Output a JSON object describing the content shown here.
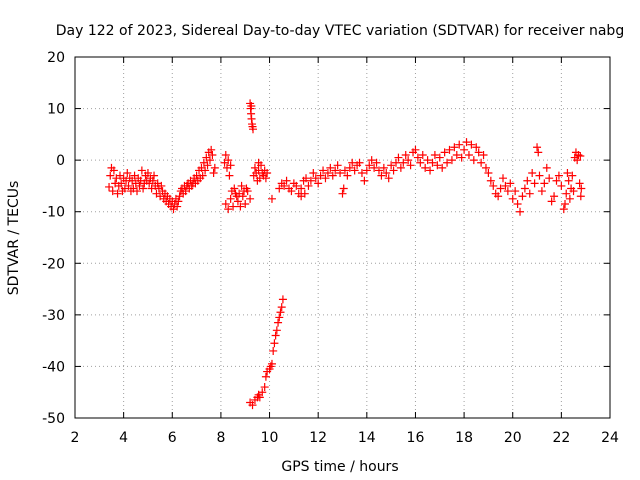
{
  "chart_data": {
    "type": "scatter",
    "title": "Day 122 of 2023, Sidereal Day-to-day VTEC variation (SDTVAR) for receiver nabg",
    "xlabel": "GPS time / hours",
    "ylabel": "SDTVAR / TECUs",
    "xlim": [
      2,
      24
    ],
    "ylim": [
      -50,
      20
    ],
    "x_ticks": [
      2,
      4,
      6,
      8,
      10,
      12,
      14,
      16,
      18,
      20,
      22,
      24
    ],
    "y_ticks": [
      -50,
      -40,
      -30,
      -20,
      -10,
      0,
      10,
      20
    ],
    "x_tick_labels": [
      "2",
      "4",
      "6",
      "8",
      "10",
      "12",
      "14",
      "16",
      "18",
      "20",
      "22",
      "24"
    ],
    "y_tick_labels": [
      "-50",
      "-40",
      "-30",
      "-20",
      "-10",
      "0",
      "10",
      "20"
    ],
    "grid": true,
    "marker": "plus",
    "color": "#ff0000",
    "series": [
      {
        "name": "SDTVAR",
        "points": [
          [
            3.4,
            -5.2
          ],
          [
            3.45,
            -3.0
          ],
          [
            3.5,
            -1.5
          ],
          [
            3.55,
            -6.0
          ],
          [
            3.6,
            -2.0
          ],
          [
            3.65,
            -4.5
          ],
          [
            3.7,
            -3.5
          ],
          [
            3.75,
            -6.5
          ],
          [
            3.8,
            -5.0
          ],
          [
            3.85,
            -3.0
          ],
          [
            3.9,
            -4.5
          ],
          [
            3.95,
            -6.0
          ],
          [
            4.0,
            -3.5
          ],
          [
            4.05,
            -5.5
          ],
          [
            4.1,
            -4.0
          ],
          [
            4.15,
            -2.5
          ],
          [
            4.2,
            -5.0
          ],
          [
            4.25,
            -3.5
          ],
          [
            4.3,
            -6.0
          ],
          [
            4.35,
            -4.0
          ],
          [
            4.4,
            -5.5
          ],
          [
            4.45,
            -3.0
          ],
          [
            4.5,
            -4.5
          ],
          [
            4.55,
            -6.0
          ],
          [
            4.6,
            -3.5
          ],
          [
            4.65,
            -5.0
          ],
          [
            4.7,
            -4.0
          ],
          [
            4.75,
            -2.0
          ],
          [
            4.8,
            -5.5
          ],
          [
            4.85,
            -4.5
          ],
          [
            4.9,
            -3.0
          ],
          [
            4.95,
            -4.0
          ],
          [
            5.0,
            -2.5
          ],
          [
            5.05,
            -4.5
          ],
          [
            5.1,
            -3.5
          ],
          [
            5.15,
            -5.5
          ],
          [
            5.2,
            -4.0
          ],
          [
            5.25,
            -3.0
          ],
          [
            5.3,
            -5.0
          ],
          [
            5.35,
            -6.5
          ],
          [
            5.4,
            -4.5
          ],
          [
            5.45,
            -5.5
          ],
          [
            5.5,
            -7.0
          ],
          [
            5.55,
            -5.0
          ],
          [
            5.6,
            -6.0
          ],
          [
            5.65,
            -7.5
          ],
          [
            5.7,
            -6.5
          ],
          [
            5.75,
            -8.0
          ],
          [
            5.8,
            -7.0
          ],
          [
            5.85,
            -8.5
          ],
          [
            5.9,
            -7.5
          ],
          [
            5.95,
            -9.0
          ],
          [
            6.0,
            -8.0
          ],
          [
            6.05,
            -9.5
          ],
          [
            6.1,
            -8.5
          ],
          [
            6.15,
            -7.5
          ],
          [
            6.2,
            -9.0
          ],
          [
            6.25,
            -8.0
          ],
          [
            6.3,
            -7.0
          ],
          [
            6.35,
            -6.0
          ],
          [
            6.4,
            -5.5
          ],
          [
            6.45,
            -6.5
          ],
          [
            6.5,
            -5.0
          ],
          [
            6.55,
            -6.0
          ],
          [
            6.6,
            -5.0
          ],
          [
            6.65,
            -4.5
          ],
          [
            6.7,
            -5.5
          ],
          [
            6.75,
            -4.0
          ],
          [
            6.8,
            -5.0
          ],
          [
            6.85,
            -4.5
          ],
          [
            6.9,
            -3.5
          ],
          [
            6.95,
            -4.5
          ],
          [
            7.0,
            -3.0
          ],
          [
            7.05,
            -4.0
          ],
          [
            7.1,
            -2.0
          ],
          [
            7.15,
            -3.5
          ],
          [
            7.2,
            -1.5
          ],
          [
            7.25,
            -3.0
          ],
          [
            7.3,
            -0.5
          ],
          [
            7.35,
            -2.0
          ],
          [
            7.4,
            0.5
          ],
          [
            7.45,
            -1.0
          ],
          [
            7.5,
            1.5
          ],
          [
            7.55,
            0.0
          ],
          [
            7.6,
            2.0
          ],
          [
            7.65,
            1.0
          ],
          [
            7.7,
            -2.5
          ],
          [
            7.75,
            -1.5
          ],
          [
            8.15,
            -0.5
          ],
          [
            8.2,
            1.0
          ],
          [
            8.25,
            -1.5
          ],
          [
            8.3,
            0.0
          ],
          [
            8.35,
            -3.0
          ],
          [
            8.4,
            -1.0
          ],
          [
            8.2,
            -8.5
          ],
          [
            8.3,
            -9.5
          ],
          [
            8.4,
            -7.5
          ],
          [
            8.5,
            -9.0
          ],
          [
            8.6,
            -6.5
          ],
          [
            8.7,
            -8.0
          ],
          [
            8.8,
            -9.0
          ],
          [
            8.9,
            -7.0
          ],
          [
            9.0,
            -8.5
          ],
          [
            9.1,
            -6.0
          ],
          [
            9.2,
            -7.5
          ],
          [
            8.45,
            -6.0
          ],
          [
            8.55,
            -5.5
          ],
          [
            8.65,
            -7.0
          ],
          [
            8.75,
            -6.5
          ],
          [
            8.85,
            -5.0
          ],
          [
            8.95,
            -6.0
          ],
          [
            9.05,
            -5.5
          ],
          [
            9.2,
            11.0
          ],
          [
            9.22,
            10.0
          ],
          [
            9.24,
            9.0
          ],
          [
            9.26,
            8.0
          ],
          [
            9.28,
            7.0
          ],
          [
            9.3,
            6.5
          ],
          [
            9.25,
            10.5
          ],
          [
            9.32,
            6.0
          ],
          [
            9.35,
            -3.0
          ],
          [
            9.4,
            -1.5
          ],
          [
            9.45,
            -2.5
          ],
          [
            9.5,
            -4.0
          ],
          [
            9.55,
            -2.0
          ],
          [
            9.6,
            -3.5
          ],
          [
            9.65,
            -1.0
          ],
          [
            9.7,
            -2.5
          ],
          [
            9.75,
            -3.0
          ],
          [
            9.8,
            -2.0
          ],
          [
            9.85,
            -3.5
          ],
          [
            9.9,
            -2.5
          ],
          [
            9.55,
            -0.5
          ],
          [
            10.1,
            -7.5
          ],
          [
            9.2,
            -47.0
          ],
          [
            9.3,
            -47.5
          ],
          [
            9.4,
            -46.5
          ],
          [
            9.5,
            -46.0
          ],
          [
            9.55,
            -45.5
          ],
          [
            9.6,
            -46.0
          ],
          [
            9.7,
            -45.0
          ],
          [
            9.8,
            -44.0
          ],
          [
            9.85,
            -42.0
          ],
          [
            9.9,
            -41.0
          ],
          [
            10.0,
            -40.5
          ],
          [
            10.05,
            -40.0
          ],
          [
            10.1,
            -39.5
          ],
          [
            10.15,
            -37.0
          ],
          [
            10.2,
            -35.5
          ],
          [
            10.25,
            -34.0
          ],
          [
            10.3,
            -33.0
          ],
          [
            10.35,
            -31.5
          ],
          [
            10.4,
            -30.5
          ],
          [
            10.45,
            -29.5
          ],
          [
            10.5,
            -28.5
          ],
          [
            10.55,
            -27.0
          ],
          [
            10.4,
            -5.5
          ],
          [
            10.5,
            -4.5
          ],
          [
            10.6,
            -5.0
          ],
          [
            10.7,
            -4.0
          ],
          [
            10.8,
            -5.5
          ],
          [
            10.9,
            -6.0
          ],
          [
            11.0,
            -4.5
          ],
          [
            11.1,
            -5.0
          ],
          [
            11.2,
            -6.5
          ],
          [
            11.3,
            -5.5
          ],
          [
            11.4,
            -4.0
          ],
          [
            11.5,
            -3.5
          ],
          [
            11.6,
            -5.0
          ],
          [
            11.7,
            -4.0
          ],
          [
            11.8,
            -2.5
          ],
          [
            11.9,
            -3.5
          ],
          [
            12.0,
            -4.5
          ],
          [
            12.1,
            -3.0
          ],
          [
            12.2,
            -2.0
          ],
          [
            12.3,
            -3.5
          ],
          [
            12.4,
            -2.5
          ],
          [
            12.5,
            -1.5
          ],
          [
            12.6,
            -3.0
          ],
          [
            12.7,
            -2.0
          ],
          [
            12.8,
            -1.0
          ],
          [
            12.9,
            -2.5
          ],
          [
            13.0,
            -6.5
          ],
          [
            13.05,
            -5.5
          ],
          [
            11.3,
            -7.0
          ],
          [
            11.45,
            -6.5
          ],
          [
            13.1,
            -2.0
          ],
          [
            13.2,
            -3.0
          ],
          [
            13.3,
            -1.5
          ],
          [
            13.4,
            -0.5
          ],
          [
            13.5,
            -2.0
          ],
          [
            13.6,
            -1.0
          ],
          [
            13.7,
            -0.5
          ],
          [
            13.8,
            -2.5
          ],
          [
            13.9,
            -4.0
          ],
          [
            14.0,
            -2.0
          ],
          [
            14.1,
            -1.0
          ],
          [
            14.2,
            0.0
          ],
          [
            14.3,
            -1.5
          ],
          [
            14.4,
            -0.5
          ],
          [
            14.5,
            -2.0
          ],
          [
            14.6,
            -3.0
          ],
          [
            14.7,
            -1.5
          ],
          [
            14.8,
            -2.5
          ],
          [
            14.9,
            -3.5
          ],
          [
            15.0,
            -1.0
          ],
          [
            15.1,
            -2.0
          ],
          [
            15.2,
            -0.5
          ],
          [
            15.3,
            0.5
          ],
          [
            15.4,
            -1.5
          ],
          [
            15.5,
            -0.5
          ],
          [
            15.6,
            1.0
          ],
          [
            15.7,
            0.0
          ],
          [
            15.8,
            -1.0
          ],
          [
            15.9,
            1.5
          ],
          [
            16.0,
            2.0
          ],
          [
            16.1,
            0.5
          ],
          [
            16.2,
            -0.5
          ],
          [
            16.3,
            1.0
          ],
          [
            16.4,
            -1.5
          ],
          [
            16.5,
            0.0
          ],
          [
            16.6,
            -2.0
          ],
          [
            16.7,
            -0.5
          ],
          [
            16.8,
            1.0
          ],
          [
            16.9,
            -1.0
          ],
          [
            17.0,
            0.5
          ],
          [
            17.1,
            -1.5
          ],
          [
            17.2,
            1.5
          ],
          [
            17.3,
            -0.5
          ],
          [
            17.4,
            2.0
          ],
          [
            17.5,
            0.0
          ],
          [
            17.6,
            2.5
          ],
          [
            17.7,
            1.0
          ],
          [
            17.8,
            3.0
          ],
          [
            17.9,
            0.5
          ],
          [
            18.0,
            2.0
          ],
          [
            18.1,
            3.5
          ],
          [
            18.2,
            1.0
          ],
          [
            18.3,
            3.0
          ],
          [
            18.4,
            0.0
          ],
          [
            18.5,
            2.5
          ],
          [
            18.6,
            1.5
          ],
          [
            18.7,
            -0.5
          ],
          [
            18.8,
            1.0
          ],
          [
            18.9,
            -1.5
          ],
          [
            19.0,
            -2.5
          ],
          [
            19.1,
            -4.0
          ],
          [
            19.2,
            -5.0
          ],
          [
            19.3,
            -6.5
          ],
          [
            19.4,
            -7.0
          ],
          [
            19.5,
            -5.5
          ],
          [
            19.6,
            -3.5
          ],
          [
            19.7,
            -5.0
          ],
          [
            19.8,
            -6.0
          ],
          [
            19.9,
            -4.5
          ],
          [
            20.0,
            -7.5
          ],
          [
            20.1,
            -6.0
          ],
          [
            20.2,
            -8.5
          ],
          [
            20.3,
            -10.0
          ],
          [
            20.4,
            -7.0
          ],
          [
            20.5,
            -5.5
          ],
          [
            20.6,
            -4.0
          ],
          [
            20.7,
            -6.5
          ],
          [
            20.8,
            -2.5
          ],
          [
            20.9,
            -4.5
          ],
          [
            21.0,
            2.5
          ],
          [
            21.05,
            1.5
          ],
          [
            21.1,
            -3.0
          ],
          [
            21.2,
            -6.0
          ],
          [
            21.3,
            -4.5
          ],
          [
            21.4,
            -1.5
          ],
          [
            21.5,
            -3.5
          ],
          [
            21.6,
            -8.0
          ],
          [
            21.7,
            -7.0
          ],
          [
            21.8,
            -4.0
          ],
          [
            21.9,
            -3.0
          ],
          [
            22.0,
            -5.0
          ],
          [
            22.1,
            -9.5
          ],
          [
            22.15,
            -8.5
          ],
          [
            22.2,
            -6.5
          ],
          [
            22.25,
            -2.5
          ],
          [
            22.3,
            -4.0
          ],
          [
            22.35,
            -7.5
          ],
          [
            22.4,
            -5.5
          ],
          [
            22.45,
            -3.0
          ],
          [
            22.5,
            -6.0
          ],
          [
            22.55,
            0.5
          ],
          [
            22.6,
            1.5
          ],
          [
            22.65,
            0.0
          ],
          [
            22.7,
            1.0
          ],
          [
            22.75,
            -4.5
          ],
          [
            22.8,
            -7.0
          ],
          [
            22.78,
            0.8
          ],
          [
            22.82,
            -5.5
          ]
        ]
      }
    ]
  }
}
